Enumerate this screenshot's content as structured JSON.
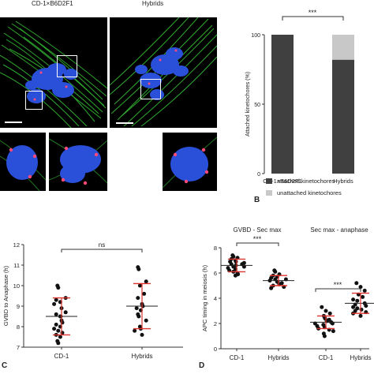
{
  "panelA": {
    "left_title": "CD-1×B6D2F1",
    "right_title": "Hybrids"
  },
  "panelB": {
    "letter": "B",
    "significance": "***"
  },
  "panelC": {
    "letter": "C",
    "significance": "ns"
  },
  "panelD": {
    "letter": "D",
    "group1_title": "GVBD - Sec max",
    "group2_title": "Sec max - anaphase",
    "significance1": "***",
    "significance2": "***"
  },
  "colors": {
    "attached": "#404040",
    "unattached": "#c8c8c8",
    "mean_bar": "#e0332d",
    "microtubules": "#38c838",
    "chromosomes": "#2a4fd8",
    "kinetochores": "#ff4a7a"
  },
  "chart_data": [
    {
      "id": "B",
      "type": "bar",
      "stacked": true,
      "categories": [
        "CD-1×B6D2F1",
        "Hybrids"
      ],
      "series": [
        {
          "name": "attached kinetochores",
          "values": [
            100,
            82
          ]
        },
        {
          "name": "unattached kinetochores",
          "values": [
            0,
            18
          ]
        }
      ],
      "ylabel": "Attached kinetochores (%)",
      "yticks": [
        0,
        50,
        100
      ],
      "ylim": [
        0,
        100
      ],
      "legend": "bottom"
    },
    {
      "id": "C",
      "type": "scatter",
      "categories": [
        "CD-1",
        "Hybrids"
      ],
      "ylabel": "GVBD to Anaphase (h)",
      "ylim": [
        7,
        12
      ],
      "yticks": [
        7,
        8,
        9,
        10,
        11,
        12
      ],
      "series": [
        {
          "values": [
            10.0,
            9.9,
            9.4,
            9.3,
            9.2,
            9.1,
            8.9,
            8.7,
            8.6,
            8.5,
            8.5,
            8.3,
            8.2,
            8.1,
            8.0,
            7.9,
            7.8,
            7.7,
            7.6,
            7.5,
            7.3,
            7.2
          ],
          "mean": 8.5,
          "sd_low": 7.6,
          "sd_high": 9.4
        },
        {
          "values": [
            10.9,
            10.8,
            10.2,
            10.0,
            9.6,
            9.4,
            9.1,
            9.0,
            8.9,
            8.8,
            8.6,
            8.5,
            8.3,
            8.0,
            7.9,
            7.8,
            7.6
          ],
          "mean": 9.0,
          "sd_low": 7.9,
          "sd_high": 10.1
        }
      ]
    },
    {
      "id": "D",
      "type": "scatter",
      "categories": [
        "CD-1",
        "Hybrids",
        "CD-1",
        "Hybrids"
      ],
      "ylabel": "APC timing in meiosis (h)",
      "ylim": [
        0,
        8
      ],
      "yticks": [
        0,
        2,
        4,
        6,
        8
      ],
      "series": [
        {
          "values": [
            7.4,
            7.3,
            7.2,
            7.1,
            7.0,
            6.9,
            6.9,
            6.8,
            6.7,
            6.7,
            6.6,
            6.5,
            6.5,
            6.4,
            6.3,
            6.2,
            6.1,
            6.0,
            5.9,
            5.8
          ],
          "mean": 6.6,
          "sd_low": 6.1,
          "sd_high": 7.1
        },
        {
          "values": [
            6.2,
            6.1,
            5.9,
            5.8,
            5.7,
            5.6,
            5.5,
            5.5,
            5.4,
            5.3,
            5.3,
            5.2,
            5.1,
            5.0,
            4.9,
            4.8
          ],
          "mean": 5.4,
          "sd_low": 5.0,
          "sd_high": 5.8
        },
        {
          "values": [
            3.3,
            3.0,
            2.8,
            2.6,
            2.5,
            2.4,
            2.3,
            2.2,
            2.2,
            2.1,
            2.0,
            2.0,
            1.9,
            1.8,
            1.7,
            1.6,
            1.5,
            1.4,
            1.2,
            1.0
          ],
          "mean": 2.1,
          "sd_low": 1.6,
          "sd_high": 2.6
        },
        {
          "values": [
            5.2,
            4.9,
            4.6,
            4.3,
            4.1,
            3.9,
            3.8,
            3.6,
            3.5,
            3.4,
            3.3,
            3.2,
            3.1,
            3.0,
            2.9,
            2.8,
            2.6
          ],
          "mean": 3.6,
          "sd_low": 2.8,
          "sd_high": 4.4
        }
      ]
    }
  ]
}
